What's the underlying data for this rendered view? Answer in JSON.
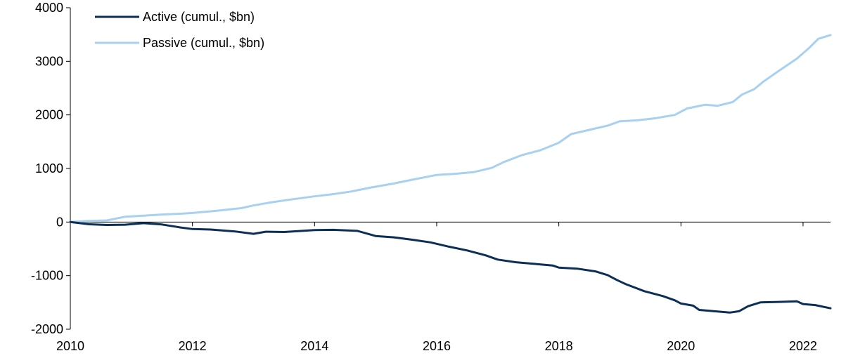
{
  "chart_data": {
    "type": "line",
    "title": "",
    "xlabel": "",
    "ylabel": "",
    "xlim": [
      2010,
      2022.45
    ],
    "ylim": [
      -2000,
      4000
    ],
    "yticks": [
      4000,
      3000,
      2000,
      1000,
      0,
      -1000,
      -2000
    ],
    "ytick_labels": [
      "4000",
      "3000",
      "2000",
      "1000",
      "0",
      "-1000",
      "-2000"
    ],
    "xticks": [
      2010,
      2012,
      2014,
      2016,
      2018,
      2020,
      2022
    ],
    "xtick_labels": [
      "2010",
      "2012",
      "2014",
      "2016",
      "2018",
      "2020",
      "2022"
    ],
    "grid": false,
    "legend_position": "top-left",
    "series": [
      {
        "name": "Active (cumul., $bn)",
        "color": "#0b2f57",
        "points": [
          [
            2010.0,
            0
          ],
          [
            2010.3,
            -40
          ],
          [
            2010.6,
            -55
          ],
          [
            2010.9,
            -50
          ],
          [
            2011.2,
            -20
          ],
          [
            2011.5,
            -45
          ],
          [
            2011.8,
            -100
          ],
          [
            2012.0,
            -130
          ],
          [
            2012.3,
            -140
          ],
          [
            2012.7,
            -175
          ],
          [
            2013.0,
            -220
          ],
          [
            2013.2,
            -180
          ],
          [
            2013.5,
            -185
          ],
          [
            2013.8,
            -165
          ],
          [
            2014.0,
            -150
          ],
          [
            2014.3,
            -145
          ],
          [
            2014.7,
            -165
          ],
          [
            2015.0,
            -260
          ],
          [
            2015.3,
            -285
          ],
          [
            2015.6,
            -330
          ],
          [
            2015.9,
            -380
          ],
          [
            2016.2,
            -460
          ],
          [
            2016.5,
            -530
          ],
          [
            2016.8,
            -620
          ],
          [
            2017.0,
            -700
          ],
          [
            2017.3,
            -750
          ],
          [
            2017.6,
            -780
          ],
          [
            2017.9,
            -810
          ],
          [
            2018.0,
            -850
          ],
          [
            2018.3,
            -870
          ],
          [
            2018.6,
            -920
          ],
          [
            2018.8,
            -990
          ],
          [
            2018.95,
            -1080
          ],
          [
            2019.1,
            -1160
          ],
          [
            2019.4,
            -1290
          ],
          [
            2019.7,
            -1380
          ],
          [
            2019.9,
            -1460
          ],
          [
            2020.0,
            -1520
          ],
          [
            2020.2,
            -1560
          ],
          [
            2020.3,
            -1640
          ],
          [
            2020.5,
            -1660
          ],
          [
            2020.8,
            -1690
          ],
          [
            2020.95,
            -1665
          ],
          [
            2021.1,
            -1570
          ],
          [
            2021.3,
            -1500
          ],
          [
            2021.6,
            -1490
          ],
          [
            2021.9,
            -1480
          ],
          [
            2022.0,
            -1530
          ],
          [
            2022.2,
            -1550
          ],
          [
            2022.45,
            -1610
          ]
        ]
      },
      {
        "name": "Passive (cumul., $bn)",
        "color": "#a8d0f0",
        "points": [
          [
            2010.0,
            0
          ],
          [
            2010.3,
            20
          ],
          [
            2010.6,
            30
          ],
          [
            2010.9,
            100
          ],
          [
            2011.2,
            120
          ],
          [
            2011.5,
            140
          ],
          [
            2011.8,
            155
          ],
          [
            2012.0,
            170
          ],
          [
            2012.4,
            210
          ],
          [
            2012.8,
            260
          ],
          [
            2013.0,
            310
          ],
          [
            2013.3,
            370
          ],
          [
            2013.6,
            420
          ],
          [
            2014.0,
            480
          ],
          [
            2014.3,
            520
          ],
          [
            2014.6,
            570
          ],
          [
            2014.9,
            640
          ],
          [
            2015.3,
            720
          ],
          [
            2015.6,
            790
          ],
          [
            2016.0,
            880
          ],
          [
            2016.3,
            900
          ],
          [
            2016.6,
            930
          ],
          [
            2016.9,
            1010
          ],
          [
            2017.1,
            1120
          ],
          [
            2017.4,
            1250
          ],
          [
            2017.7,
            1340
          ],
          [
            2018.0,
            1480
          ],
          [
            2018.2,
            1640
          ],
          [
            2018.5,
            1720
          ],
          [
            2018.8,
            1800
          ],
          [
            2019.0,
            1880
          ],
          [
            2019.3,
            1900
          ],
          [
            2019.6,
            1940
          ],
          [
            2019.9,
            2000
          ],
          [
            2020.1,
            2120
          ],
          [
            2020.4,
            2190
          ],
          [
            2020.6,
            2170
          ],
          [
            2020.85,
            2240
          ],
          [
            2021.0,
            2380
          ],
          [
            2021.2,
            2480
          ],
          [
            2021.35,
            2620
          ],
          [
            2021.6,
            2820
          ],
          [
            2021.9,
            3050
          ],
          [
            2022.1,
            3250
          ],
          [
            2022.25,
            3420
          ],
          [
            2022.45,
            3490
          ]
        ]
      }
    ]
  }
}
